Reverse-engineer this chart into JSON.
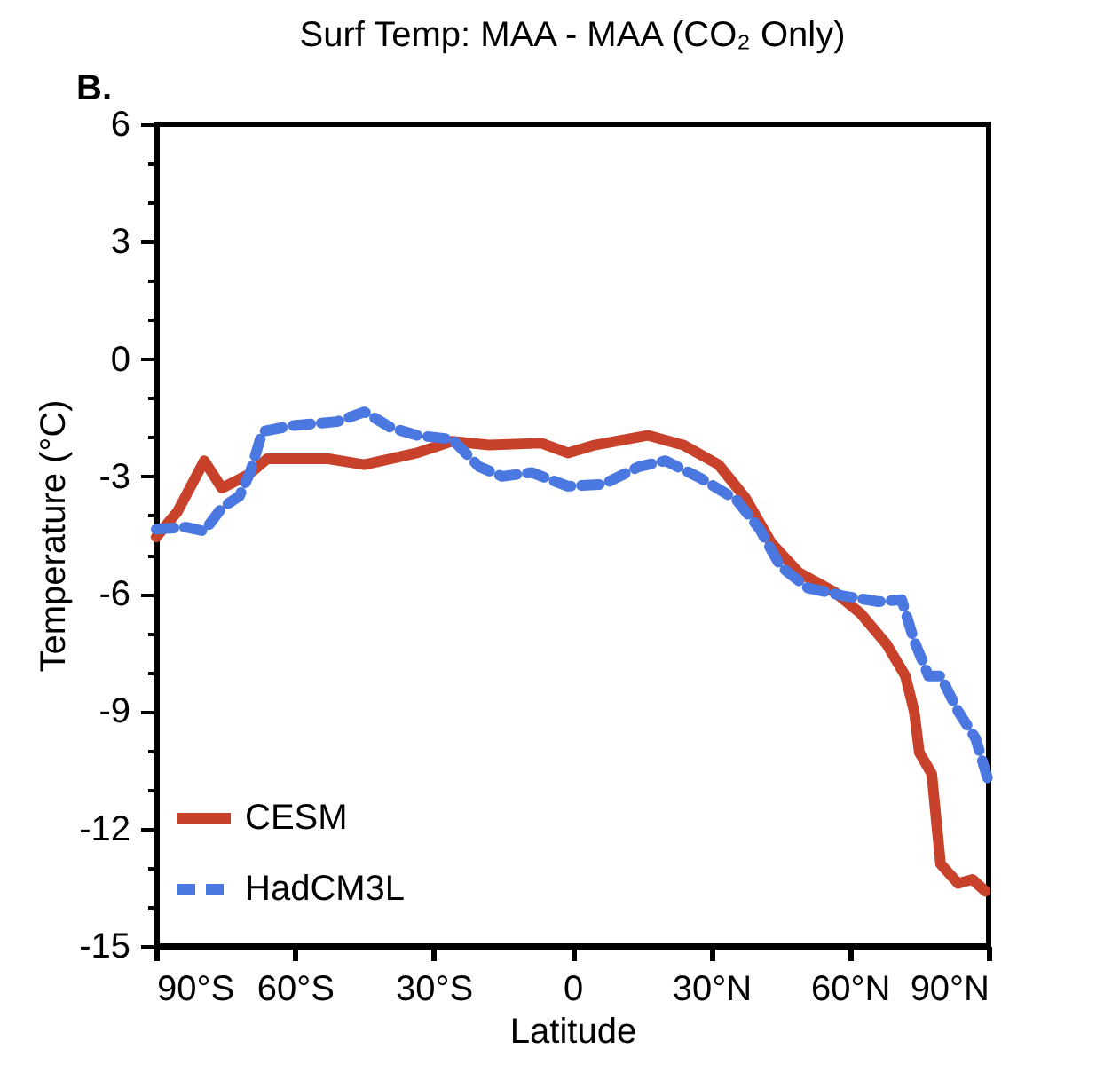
{
  "chart_data": {
    "type": "line",
    "title": "Surf Temp: MAA - MAA (CO₂ Only)",
    "annotations": [
      "B."
    ],
    "xlabel": "Latitude",
    "ylabel": "Temperature (°C)",
    "xlim": [
      -90,
      90
    ],
    "xticks": [
      {
        "value": -90,
        "label": "90°S"
      },
      {
        "value": -60,
        "label": "60°S"
      },
      {
        "value": -30,
        "label": "30°S"
      },
      0,
      {
        "value": 30,
        "label": "30°N"
      },
      {
        "value": 60,
        "label": "60°N"
      },
      {
        "value": 90,
        "label": "90°N"
      }
    ],
    "ylim": [
      -15,
      6
    ],
    "yticks": [
      -15,
      {
        "value": -14,
        "label": null
      },
      {
        "value": -13,
        "label": null
      },
      -12,
      {
        "value": -11,
        "label": null
      },
      {
        "value": -10,
        "label": null
      },
      -9,
      {
        "value": -8,
        "label": null
      },
      {
        "value": -7,
        "label": null
      },
      -6,
      {
        "value": -5,
        "label": null
      },
      {
        "value": -4,
        "label": null
      },
      -3,
      {
        "value": -2,
        "label": null
      },
      {
        "value": -1,
        "label": null
      },
      0,
      {
        "value": 1,
        "label": null
      },
      {
        "value": 2,
        "label": null
      },
      3,
      {
        "value": 4,
        "label": null
      },
      {
        "value": 5,
        "label": null
      },
      6
    ],
    "grid": false,
    "legend": "bottom left",
    "marker": "none",
    "series": [
      {
        "name": "CESM",
        "color": "#c8412a",
        "line_style": "solid",
        "x": [
          -90,
          -85.4,
          -79.6,
          -75.8,
          -70,
          -66,
          -52.8,
          -45,
          -33.6,
          -26,
          -18,
          -6.7,
          -1,
          4.8,
          16.3,
          24,
          31.6,
          37.4,
          43,
          48.9,
          56.6,
          62.3,
          68,
          72,
          73.9,
          75,
          77.7,
          79.6,
          83.4,
          86.5,
          89.3
        ],
        "values": [
          -4.55,
          -3.9,
          -2.6,
          -3.3,
          -2.95,
          -2.55,
          -2.55,
          -2.7,
          -2.4,
          -2.1,
          -2.2,
          -2.15,
          -2.4,
          -2.2,
          -1.95,
          -2.2,
          -2.7,
          -3.55,
          -4.7,
          -5.45,
          -5.95,
          -6.5,
          -7.3,
          -8.1,
          -9.0,
          -10.05,
          -10.6,
          -12.9,
          -13.4,
          -13.3,
          -13.6
        ]
      },
      {
        "name": "HadCM3L",
        "color": "#4a78e0",
        "line_style": "dashed",
        "x": [
          -90,
          -83.5,
          -79.6,
          -75.8,
          -72,
          -69.7,
          -67,
          -60.5,
          -50.9,
          -45,
          -39.3,
          -33.6,
          -26,
          -20.2,
          -15.2,
          -8.8,
          -1,
          6.7,
          14.4,
          20.1,
          27.8,
          35.5,
          40.5,
          45,
          50.9,
          58.5,
          66.2,
          71.2,
          73.9,
          77,
          79.6,
          83.4,
          87.2,
          90
        ],
        "values": [
          -4.35,
          -4.3,
          -4.4,
          -3.8,
          -3.5,
          -2.9,
          -1.85,
          -1.7,
          -1.6,
          -1.35,
          -1.75,
          -1.95,
          -2.05,
          -2.75,
          -3.0,
          -2.9,
          -3.25,
          -3.2,
          -2.75,
          -2.6,
          -3.05,
          -3.6,
          -4.35,
          -5.3,
          -5.85,
          -6.05,
          -6.2,
          -6.15,
          -7.2,
          -8.1,
          -8.1,
          -9.0,
          -9.7,
          -10.8
        ]
      }
    ]
  }
}
